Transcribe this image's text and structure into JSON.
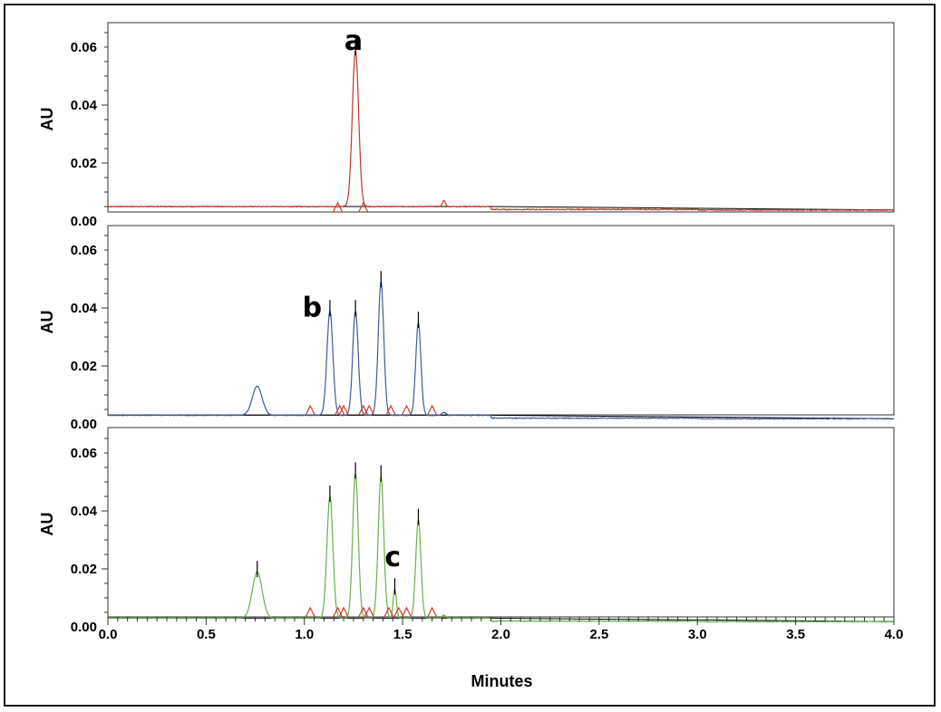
{
  "chart_data": {
    "type": "line",
    "xlabel": "Minutes",
    "xlim": [
      0.0,
      4.0
    ],
    "x_ticks": [
      "0.0",
      "0.5",
      "1.0",
      "1.5",
      "2.0",
      "2.5",
      "3.0",
      "3.5",
      "4.0"
    ],
    "ylabel": "AU",
    "ylim": [
      0.0,
      0.065
    ],
    "y_ticks": [
      "0.00",
      "0.02",
      "0.04",
      "0.06"
    ],
    "grid": false,
    "colors": {
      "trace_a": "#c0392b",
      "trace_b": "#3f5d9a",
      "trace_c": "#6ab04c",
      "baseline": "#000000",
      "integration_marks": "#d0392b"
    },
    "panels": [
      {
        "label": "a",
        "label_x": 1.25,
        "label_y": 0.059,
        "color": "#c0392b",
        "baseline": 0.005,
        "peaks": [
          {
            "x": 1.26,
            "height": 0.054,
            "width": 0.016
          }
        ],
        "baseline_bumps": [
          {
            "x": 1.71,
            "height": 0.002,
            "width": 0.008
          }
        ],
        "integration_marks": [
          1.17,
          1.3
        ]
      },
      {
        "label": "b",
        "label_x": 1.04,
        "label_y": 0.037,
        "color": "#3f5d9a",
        "baseline": 0.003,
        "peaks": [
          {
            "x": 0.76,
            "height": 0.01,
            "width": 0.025
          },
          {
            "x": 1.13,
            "height": 0.036,
            "width": 0.015
          },
          {
            "x": 1.26,
            "height": 0.036,
            "width": 0.014
          },
          {
            "x": 1.39,
            "height": 0.046,
            "width": 0.014
          },
          {
            "x": 1.58,
            "height": 0.032,
            "width": 0.013
          }
        ],
        "baseline_bumps": [
          {
            "x": 1.71,
            "height": 0.001,
            "width": 0.01
          }
        ],
        "integration_marks": [
          1.03,
          1.18,
          1.2,
          1.3,
          1.33,
          1.44,
          1.52,
          1.65
        ]
      },
      {
        "label": "c",
        "label_x": 1.45,
        "label_y": 0.021,
        "color": "#6ab04c",
        "baseline": 0.003,
        "peaks": [
          {
            "x": 0.76,
            "height": 0.016,
            "width": 0.025
          },
          {
            "x": 1.13,
            "height": 0.042,
            "width": 0.015
          },
          {
            "x": 1.26,
            "height": 0.05,
            "width": 0.014
          },
          {
            "x": 1.39,
            "height": 0.049,
            "width": 0.014
          },
          {
            "x": 1.46,
            "height": 0.01,
            "width": 0.008
          },
          {
            "x": 1.58,
            "height": 0.034,
            "width": 0.013
          }
        ],
        "baseline_bumps": [
          {
            "x": 1.71,
            "height": 0.001,
            "width": 0.01
          }
        ],
        "integration_marks": [
          1.03,
          1.17,
          1.2,
          1.3,
          1.33,
          1.43,
          1.48,
          1.52,
          1.65
        ]
      }
    ]
  }
}
